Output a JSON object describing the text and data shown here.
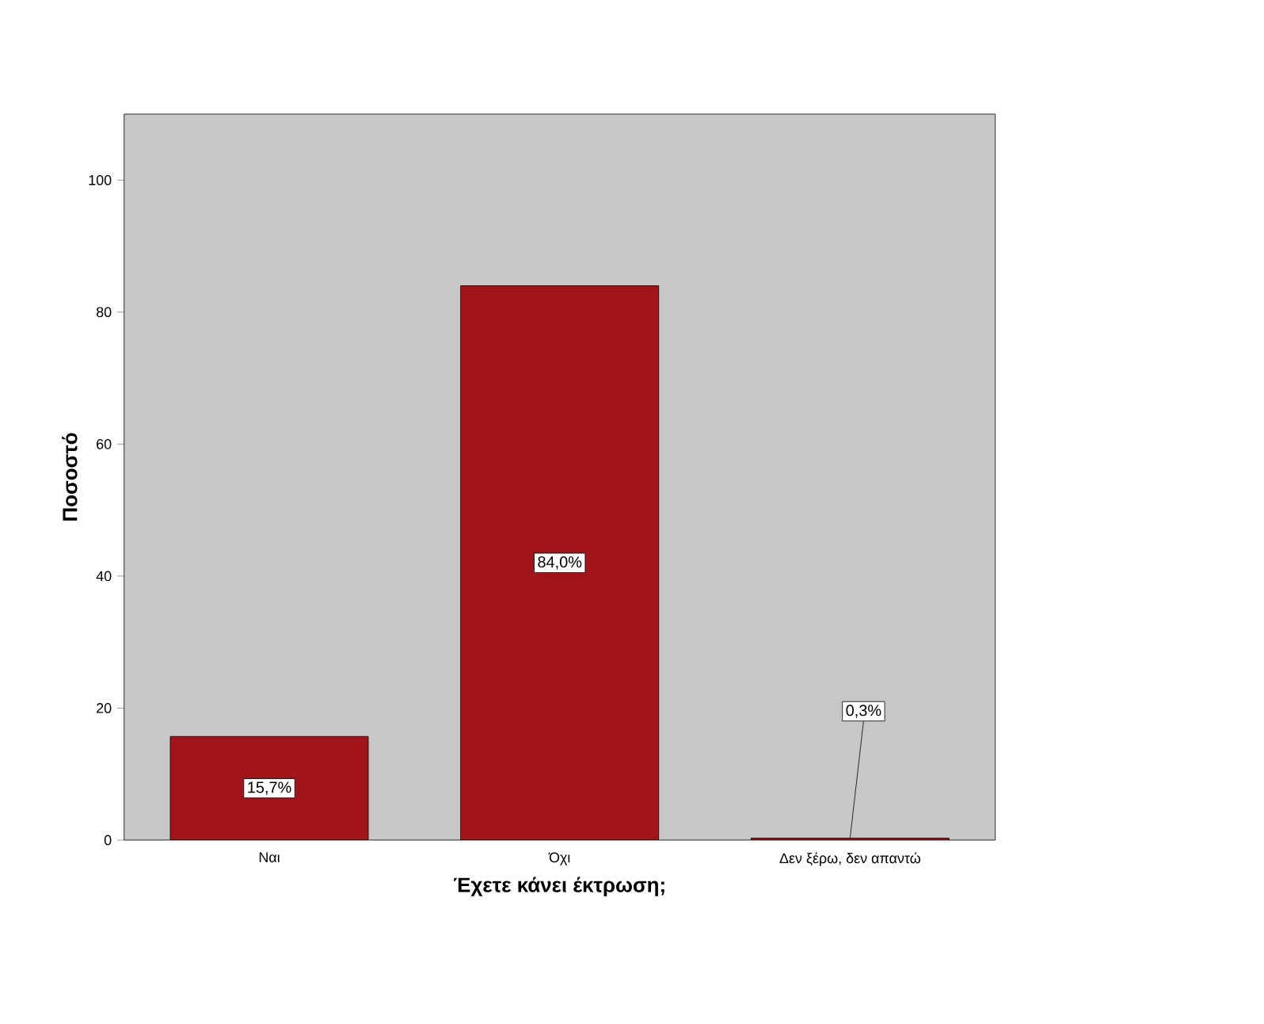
{
  "chart_data": {
    "type": "bar",
    "xlabel": "Έχετε κάνει έκτρωση;",
    "ylabel": "Ποσοστό",
    "categories": [
      "Ναι",
      "Όχι",
      "Δεν ξέρω, δεν απαντώ"
    ],
    "values": [
      15.7,
      84.0,
      0.3
    ],
    "value_labels": [
      "15,7%",
      "84,0%",
      "0,3%"
    ],
    "color": "#a0141a",
    "ylim": [
      0,
      110
    ],
    "yticks": [
      0,
      20,
      40,
      60,
      80,
      100
    ],
    "grid": false
  }
}
